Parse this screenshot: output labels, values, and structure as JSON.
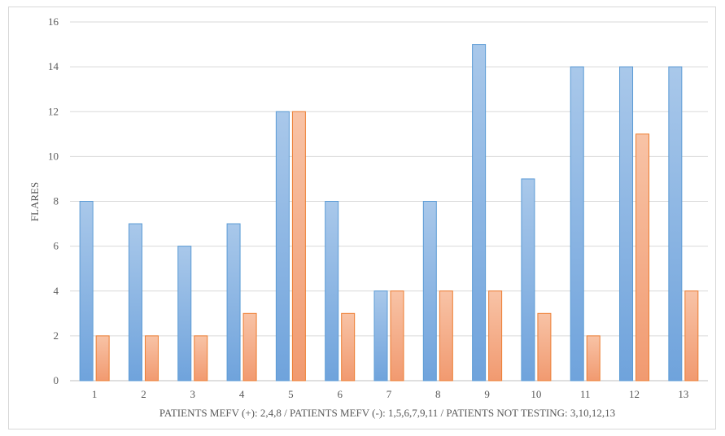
{
  "chart_data": {
    "type": "bar",
    "categories": [
      "1",
      "2",
      "3",
      "4",
      "5",
      "6",
      "7",
      "8",
      "9",
      "10",
      "11",
      "12",
      "13"
    ],
    "series": [
      {
        "values": [
          8,
          7,
          6,
          7,
          12,
          8,
          4,
          8,
          15,
          9,
          14,
          14,
          14
        ],
        "color": "#5b9bd5"
      },
      {
        "values": [
          2,
          2,
          2,
          3,
          12,
          3,
          4,
          4,
          4,
          3,
          2,
          11,
          4
        ],
        "color": "#ed7d31"
      }
    ],
    "title": "",
    "xlabel": "PATIENTS MEFV (+): 2,4,8 / PATIENTS MEFV (-): 1,5,6,7,9,11 / PATIENTS NOT TESTING: 3,10,12,13",
    "ylabel": "FLARES",
    "ylim": [
      0,
      16
    ],
    "yticks": [
      "0",
      "2",
      "4",
      "6",
      "8",
      "10",
      "12",
      "14",
      "16"
    ],
    "grid": true,
    "legend": "none"
  }
}
